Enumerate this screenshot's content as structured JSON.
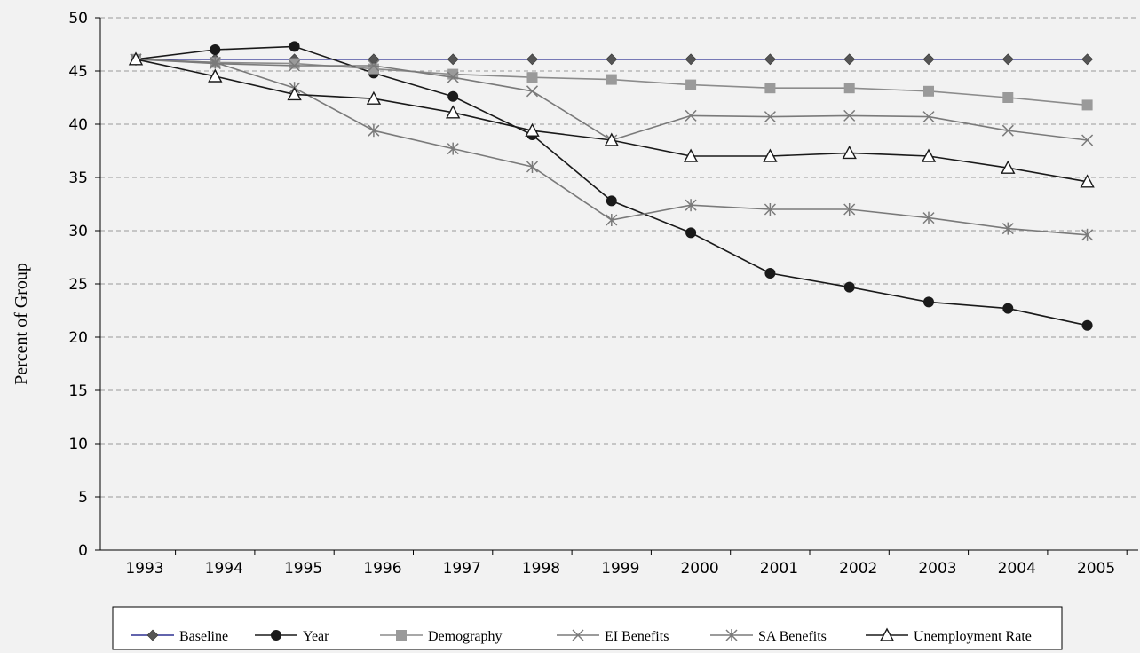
{
  "chart_data": {
    "type": "line",
    "xlabel": "",
    "ylabel": "Percent of Group",
    "x": [
      "1993",
      "1994",
      "1995",
      "1996",
      "1997",
      "1998",
      "1999",
      "2000",
      "2001",
      "2002",
      "2003",
      "2004",
      "2005"
    ],
    "ylim": [
      0,
      50
    ],
    "yticks": [
      0,
      5,
      10,
      15,
      20,
      25,
      30,
      35,
      40,
      45,
      50
    ],
    "grid": "horizontal dashed",
    "legend_position": "bottom",
    "series": [
      {
        "name": "Baseline",
        "marker": "diamond",
        "color": "#2e3192",
        "marker_color": "#555555",
        "values": [
          46.1,
          46.1,
          46.1,
          46.1,
          46.1,
          46.1,
          46.1,
          46.1,
          46.1,
          46.1,
          46.1,
          46.1,
          46.1
        ]
      },
      {
        "name": "Year",
        "marker": "circle",
        "color": "#1a1a1a",
        "marker_color": "#1a1a1a",
        "values": [
          46.1,
          47.0,
          47.3,
          44.8,
          42.6,
          39.0,
          32.8,
          29.8,
          26.0,
          24.7,
          23.3,
          22.7,
          21.1
        ]
      },
      {
        "name": "Demography",
        "marker": "square",
        "color": "#8c8c8c",
        "marker_color": "#9a9a9a",
        "values": [
          46.1,
          45.8,
          45.7,
          45.2,
          44.7,
          44.4,
          44.2,
          43.7,
          43.4,
          43.4,
          43.1,
          42.5,
          41.8
        ]
      },
      {
        "name": "EI Benefits",
        "marker": "x",
        "color": "#7a7a7a",
        "marker_color": "#7a7a7a",
        "values": [
          46.1,
          45.7,
          45.5,
          45.5,
          44.4,
          43.1,
          38.5,
          40.8,
          40.7,
          40.8,
          40.7,
          39.4,
          38.5
        ]
      },
      {
        "name": "SA Benefits",
        "marker": "star",
        "color": "#7a7a7a",
        "marker_color": "#7a7a7a",
        "values": [
          46.1,
          45.8,
          43.4,
          39.4,
          37.7,
          36.0,
          31.0,
          32.4,
          32.0,
          32.0,
          31.2,
          30.2,
          29.6
        ]
      },
      {
        "name": "Unemployment Rate",
        "marker": "triangle",
        "color": "#1a1a1a",
        "marker_color": "#1a1a1a",
        "values": [
          46.1,
          44.5,
          42.8,
          42.4,
          41.1,
          39.4,
          38.5,
          37.0,
          37.0,
          37.3,
          37.0,
          35.9,
          34.6
        ]
      }
    ]
  }
}
